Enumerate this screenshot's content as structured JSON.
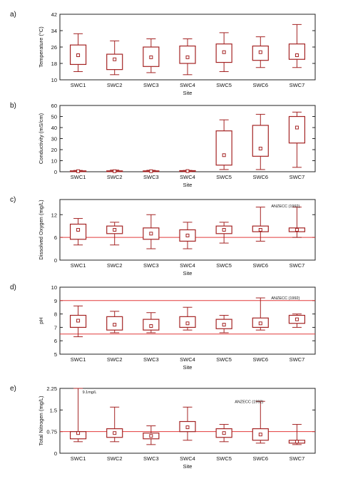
{
  "colors": {
    "box": "#a42323",
    "guide": "#e23a3a",
    "axis": "#222222"
  },
  "chart_data": [
    {
      "type": "box",
      "panel_label": "a)",
      "ylabel": "Temperature (°C)",
      "xlabel": "Site",
      "categories": [
        "SWC1",
        "SWC2",
        "SWC3",
        "SWC4",
        "SWC5",
        "SWC6",
        "SWC7"
      ],
      "ylim": [
        10,
        42
      ],
      "yticks": [
        10,
        18,
        26,
        34,
        42
      ],
      "ytick_labels": [
        "10",
        "18",
        "26",
        "34",
        "42"
      ],
      "grid": false,
      "boxes": [
        {
          "min": 14,
          "q1": 17.5,
          "median": 22,
          "q3": 27,
          "max": 32.5
        },
        {
          "min": 12.5,
          "q1": 15,
          "median": 20,
          "q3": 22.5,
          "max": 29
        },
        {
          "min": 13.5,
          "q1": 16.5,
          "median": 21,
          "q3": 26,
          "max": 30
        },
        {
          "min": 12.5,
          "q1": 18,
          "median": 21,
          "q3": 26.5,
          "max": 30
        },
        {
          "min": 14,
          "q1": 18.5,
          "median": 23.5,
          "q3": 27.5,
          "max": 33
        },
        {
          "min": 16,
          "q1": 19.5,
          "median": 23.5,
          "q3": 26.5,
          "max": 31
        },
        {
          "min": 16,
          "q1": 20,
          "median": 22,
          "q3": 27.5,
          "max": 37
        }
      ],
      "reference_lines": [],
      "annotations": []
    },
    {
      "type": "box",
      "panel_label": "b)",
      "ylabel": "Conductivity (mS/cm)",
      "xlabel": "Site",
      "categories": [
        "SWC1",
        "SWC2",
        "SWC3",
        "SWC4",
        "SWC5",
        "SWC6",
        "SWC7"
      ],
      "ylim": [
        0,
        60
      ],
      "yticks": [
        0,
        10,
        20,
        30,
        40,
        50,
        60
      ],
      "ytick_labels": [
        "0",
        "10",
        "20",
        "30",
        "40",
        "50",
        "60"
      ],
      "grid": false,
      "boxes": [
        {
          "min": 0,
          "q1": 0.3,
          "median": 0.5,
          "q3": 0.8,
          "max": 1.2
        },
        {
          "min": 0,
          "q1": 0.3,
          "median": 0.5,
          "q3": 0.8,
          "max": 1.5
        },
        {
          "min": 0,
          "q1": 0.3,
          "median": 0.5,
          "q3": 0.8,
          "max": 1.3
        },
        {
          "min": 0,
          "q1": 0.3,
          "median": 0.6,
          "q3": 1.0,
          "max": 1.2
        },
        {
          "min": 2,
          "q1": 6,
          "median": 15,
          "q3": 37,
          "max": 47
        },
        {
          "min": 2,
          "q1": 14,
          "median": 21,
          "q3": 42,
          "max": 52
        },
        {
          "min": 4,
          "q1": 26,
          "median": 40,
          "q3": 50,
          "max": 54
        }
      ],
      "reference_lines": [],
      "annotations": []
    },
    {
      "type": "box",
      "panel_label": "c)",
      "ylabel": "Dissolved Oxygen (mg/L)",
      "xlabel": "Site",
      "categories": [
        "SWC1",
        "SWC2",
        "SWC3",
        "SWC4",
        "SWC5",
        "SWC6",
        "SWC7"
      ],
      "ylim": [
        0,
        16
      ],
      "yticks": [
        0,
        6,
        12
      ],
      "ytick_labels": [
        "0",
        "6",
        "12"
      ],
      "grid": false,
      "boxes": [
        {
          "min": 4,
          "q1": 5.5,
          "median": 8,
          "q3": 9.5,
          "max": 11
        },
        {
          "min": 4,
          "q1": 7,
          "median": 8,
          "q3": 9,
          "max": 10
        },
        {
          "min": 3,
          "q1": 5.5,
          "median": 7,
          "q3": 8.5,
          "max": 12
        },
        {
          "min": 3,
          "q1": 5,
          "median": 6.5,
          "q3": 8,
          "max": 10
        },
        {
          "min": 4.5,
          "q1": 7,
          "median": 8,
          "q3": 9,
          "max": 10
        },
        {
          "min": 5,
          "q1": 7.5,
          "median": 8,
          "q3": 9,
          "max": 14
        },
        {
          "min": 6,
          "q1": 7.5,
          "median": 8,
          "q3": 8.5,
          "max": 14
        }
      ],
      "reference_lines": [
        {
          "value": 6
        }
      ],
      "annotations": [
        {
          "text": "ANZECC (1992)",
          "x_category": 6,
          "y": 14.5
        }
      ]
    },
    {
      "type": "box",
      "panel_label": "d)",
      "ylabel": "pH",
      "xlabel": "Site",
      "categories": [
        "SWC1",
        "SWC2",
        "SWC3",
        "SWC4",
        "SWC5",
        "SWC6",
        "SWC7"
      ],
      "ylim": [
        5,
        10
      ],
      "yticks": [
        5,
        6,
        7,
        8,
        9,
        10
      ],
      "ytick_labels": [
        "5",
        "6",
        "7",
        "8",
        "9",
        "10"
      ],
      "grid": false,
      "boxes": [
        {
          "min": 6.3,
          "q1": 7.0,
          "median": 7.5,
          "q3": 7.9,
          "max": 8.6
        },
        {
          "min": 6.6,
          "q1": 6.8,
          "median": 7.2,
          "q3": 7.8,
          "max": 8.2
        },
        {
          "min": 6.6,
          "q1": 6.8,
          "median": 7.1,
          "q3": 7.6,
          "max": 8.1
        },
        {
          "min": 6.8,
          "q1": 7.0,
          "median": 7.3,
          "q3": 7.8,
          "max": 8.5
        },
        {
          "min": 6.6,
          "q1": 6.9,
          "median": 7.2,
          "q3": 7.6,
          "max": 7.9
        },
        {
          "min": 6.8,
          "q1": 7.0,
          "median": 7.3,
          "q3": 7.7,
          "max": 9.2
        },
        {
          "min": 7.0,
          "q1": 7.3,
          "median": 7.6,
          "q3": 7.9,
          "max": 8.0
        }
      ],
      "reference_lines": [
        {
          "value": 6.5
        },
        {
          "value": 9
        }
      ],
      "annotations": [
        {
          "text": "ANZECC (1992)",
          "x_category": 6,
          "y": 9.25
        }
      ]
    },
    {
      "type": "box",
      "panel_label": "e)",
      "ylabel": "Total Nitrogen (mg/L)",
      "xlabel": "Site",
      "categories": [
        "SWC1",
        "SWC2",
        "SWC3",
        "SWC4",
        "SWC5",
        "SWC6",
        "SWC7"
      ],
      "ylim": [
        0,
        2.25
      ],
      "yticks": [
        0,
        0.75,
        1.5,
        2.25
      ],
      "ytick_labels": [
        "0",
        "0.75",
        "1.5",
        "2.25"
      ],
      "grid": false,
      "boxes": [
        {
          "min": 0.4,
          "q1": 0.5,
          "median": 0.7,
          "q3": 0.75,
          "max": 2.25
        },
        {
          "min": 0.4,
          "q1": 0.55,
          "median": 0.7,
          "q3": 0.85,
          "max": 1.6
        },
        {
          "min": 0.3,
          "q1": 0.5,
          "median": 0.6,
          "q3": 0.7,
          "max": 0.95
        },
        {
          "min": 0.45,
          "q1": 0.75,
          "median": 0.9,
          "q3": 1.1,
          "max": 1.6
        },
        {
          "min": 0.4,
          "q1": 0.55,
          "median": 0.7,
          "q3": 0.85,
          "max": 1.0
        },
        {
          "min": 0.35,
          "q1": 0.45,
          "median": 0.65,
          "q3": 0.85,
          "max": 1.8
        },
        {
          "min": 0.3,
          "q1": 0.35,
          "median": 0.4,
          "q3": 0.45,
          "max": 1.0
        }
      ],
      "reference_lines": [
        {
          "value": 0.75
        }
      ],
      "annotations": [
        {
          "text": "9.1mg/L",
          "x_category": 0,
          "y": 2.15
        },
        {
          "text": "ANZECC (1992)",
          "x_category": 5,
          "y": 1.82
        }
      ]
    }
  ]
}
